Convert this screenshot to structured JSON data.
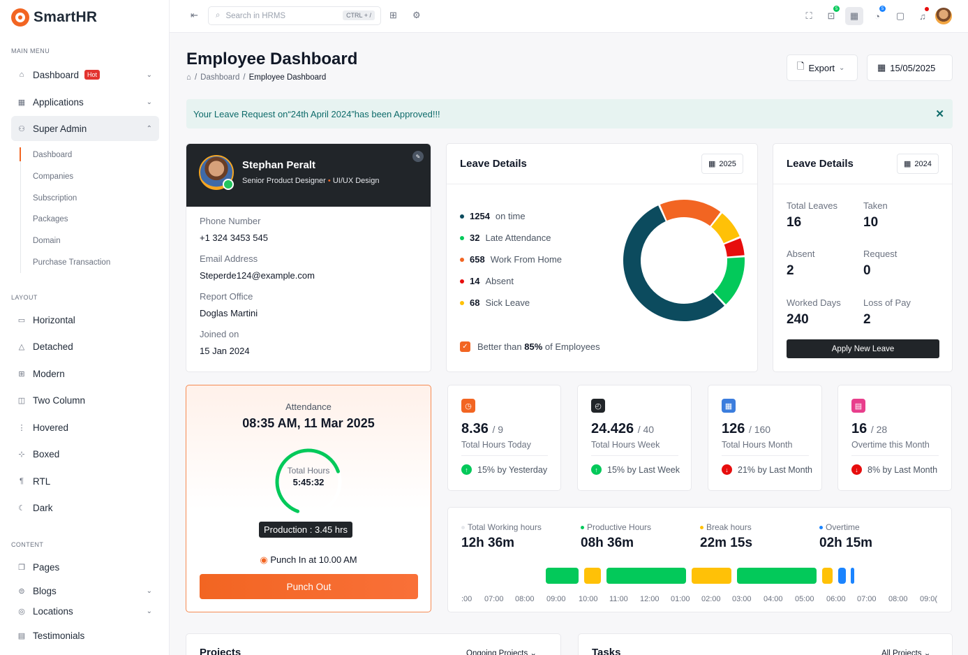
{
  "app": {
    "name": "SmartHR"
  },
  "sidebar": {
    "main_menu_label": "MAIN MENU",
    "main_items": [
      {
        "label": "Dashboard",
        "badge": "Hot",
        "icon": "house-icon"
      },
      {
        "label": "Applications",
        "icon": "grid-icon"
      },
      {
        "label": "Super Admin",
        "icon": "user-icon"
      }
    ],
    "sub_items": [
      "Dashboard",
      "Companies",
      "Subscription",
      "Packages",
      "Domain",
      "Purchase Transaction"
    ],
    "layout_label": "LAYOUT",
    "layout_items": [
      "Horizontal",
      "Detached",
      "Modern",
      "Two Column",
      "Hovered",
      "Boxed",
      "RTL",
      "Dark"
    ],
    "content_label": "CONTENT",
    "content_items": [
      "Pages",
      "Blogs",
      "Locations",
      "Testimonials"
    ]
  },
  "topbar": {
    "search_placeholder": "Search in HRMS",
    "search_shortcut": "CTRL + /",
    "badge_a": "5",
    "badge_b": "5"
  },
  "page": {
    "title": "Employee Dashboard",
    "breadcrumb": [
      "Dashboard",
      "Employee Dashboard"
    ],
    "export_label": "Export",
    "date_label": "15/05/2025"
  },
  "alert": {
    "text": "Your Leave Request on“24th April 2024”has been Approved!!!"
  },
  "profile": {
    "name": "Stephan Peralt",
    "role": "Senior Product Designer",
    "dept": "UI/UX Design",
    "fields": [
      {
        "label": "Phone Number",
        "value": "+1 324 3453 545"
      },
      {
        "label": "Email Address",
        "value": "Steperde124@example.com"
      },
      {
        "label": "Report Office",
        "value": "Doglas Martini"
      },
      {
        "label": "Joined on",
        "value": "15  Jan 2024"
      }
    ]
  },
  "leave_chart": {
    "title": "Leave Details",
    "year": "2025",
    "better_prefix": "Better than",
    "better_value": "85%",
    "better_suffix": "of Employees"
  },
  "chart_data": {
    "type": "pie",
    "categories": [
      "on time",
      "Late Attendance",
      "Work From Home",
      "Absent",
      "Sick Leave"
    ],
    "values": [
      1254,
      32,
      658,
      14,
      68
    ],
    "colors": [
      "#0c4b5e",
      "#03c95a",
      "#f26522",
      "#e70d0d",
      "#ffc107"
    ],
    "donut": true
  },
  "leave_stats": {
    "title": "Leave Details",
    "year": "2024",
    "items": [
      {
        "label": "Total Leaves",
        "value": "16"
      },
      {
        "label": "Taken",
        "value": "10"
      },
      {
        "label": "Absent",
        "value": "2"
      },
      {
        "label": "Request",
        "value": "0"
      },
      {
        "label": "Worked Days",
        "value": "240"
      },
      {
        "label": "Loss of Pay",
        "value": "2"
      }
    ],
    "apply_label": "Apply New Leave"
  },
  "attendance": {
    "label": "Attendance",
    "datetime": "08:35 AM, 11 Mar 2025",
    "ring_label": "Total Hours",
    "ring_value": "5:45:32",
    "ring_progress": 0.64,
    "production": "Production : 3.45 hrs",
    "punch_in": "Punch In at 10.00 AM",
    "punch_out_label": "Punch Out"
  },
  "stats": [
    {
      "value": "8.36",
      "total": "/ 9",
      "label": "Total Hours Today",
      "delta": "15% by Yesterday",
      "up": true,
      "color": "#f26522"
    },
    {
      "value": "24.426",
      "total": "/ 40",
      "label": "Total Hours Week",
      "delta": "15% by  Last Week",
      "up": true,
      "color": "#212529"
    },
    {
      "value": "126",
      "total": "/ 160",
      "label": "Total Hours Month",
      "delta": "21% by Last Month",
      "up": false,
      "color": "#3b7ddd"
    },
    {
      "value": "16",
      "total": "/ 28",
      "label": "Overtime this Month",
      "delta": "8% by Last Month",
      "up": false,
      "color": "#e83e8c"
    }
  ],
  "work_hours": {
    "items": [
      {
        "label": "Total Working hours",
        "value": "12h 36m",
        "color": "#e5e7eb"
      },
      {
        "label": "Productive Hours",
        "value": "08h 36m",
        "color": "#03c95a"
      },
      {
        "label": "Break hours",
        "value": "22m 15s",
        "color": "#ffc107"
      },
      {
        "label": "Overtime",
        "value": "02h 15m",
        "color": "#1b84ff"
      }
    ],
    "ticks": [
      ":00",
      "07:00",
      "08:00",
      "09:00",
      "10:00",
      "11:00",
      "12:00",
      "01:00",
      "02:00",
      "03:00",
      "04:00",
      "05:00",
      "06:00",
      "07:00",
      "08:00",
      "09:0("
    ]
  },
  "bottom": {
    "projects_title": "Projects",
    "projects_filter": "Ongoing Projects",
    "tasks_title": "Tasks",
    "tasks_filter": "All Projects"
  }
}
